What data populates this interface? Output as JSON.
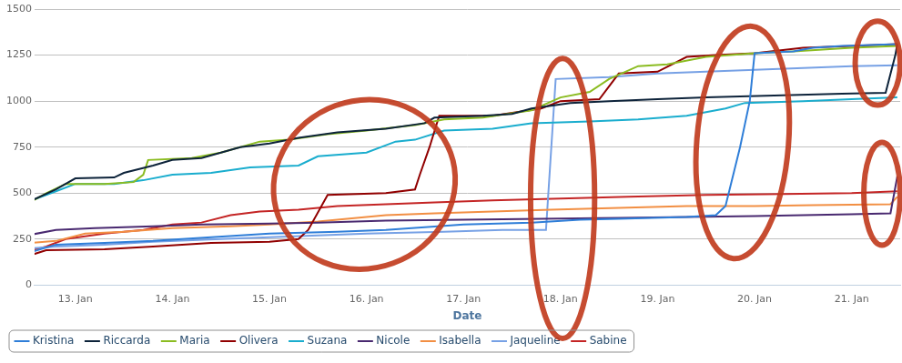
{
  "chart_data": {
    "type": "line",
    "x_label": "Date",
    "xlim": [
      12.58,
      21.5
    ],
    "xticks": [
      {
        "value": 13,
        "label": "13. Jan"
      },
      {
        "value": 14,
        "label": "14. Jan"
      },
      {
        "value": 15,
        "label": "15. Jan"
      },
      {
        "value": 16,
        "label": "16. Jan"
      },
      {
        "value": 17,
        "label": "17. Jan"
      },
      {
        "value": 18,
        "label": "18. Jan"
      },
      {
        "value": 19,
        "label": "19. Jan"
      },
      {
        "value": 20,
        "label": "20. Jan"
      },
      {
        "value": 21,
        "label": "21. Jan"
      }
    ],
    "ylim": [
      0,
      1500
    ],
    "yticks": [
      0,
      250,
      500,
      750,
      1000,
      1250,
      1500
    ],
    "grid": true,
    "legend": "bottom",
    "series": [
      {
        "name": "Kristina",
        "color": "#2f7ed8",
        "x": [
          12.55,
          12.8,
          13.3,
          13.8,
          14.4,
          15.0,
          15.7,
          16.2,
          17.0,
          17.7,
          18.2,
          18.6,
          19.3,
          19.6,
          19.7,
          19.85,
          19.95,
          20.0,
          20.4,
          20.6,
          20.9,
          21.47
        ],
        "values": [
          180,
          220,
          230,
          240,
          260,
          280,
          290,
          300,
          330,
          340,
          355,
          360,
          370,
          380,
          430,
          750,
          1000,
          1260,
          1270,
          1290,
          1300,
          1310
        ]
      },
      {
        "name": "Riccarda",
        "color": "#0d233a",
        "x": [
          12.55,
          12.8,
          13.0,
          13.4,
          13.5,
          13.8,
          14.0,
          14.3,
          14.7,
          15.0,
          15.3,
          15.7,
          16.2,
          16.6,
          16.7,
          17.2,
          17.5,
          17.7,
          18.1,
          18.5,
          19.0,
          19.5,
          20.2,
          20.9,
          21.35,
          21.45,
          21.47
        ],
        "values": [
          460,
          520,
          580,
          585,
          610,
          650,
          680,
          690,
          750,
          770,
          800,
          830,
          850,
          880,
          910,
          920,
          930,
          960,
          990,
          1000,
          1010,
          1020,
          1030,
          1040,
          1045,
          1250,
          1310
        ]
      },
      {
        "name": "Maria",
        "color": "#8bbc21",
        "x": [
          12.55,
          12.7,
          12.9,
          13.3,
          13.6,
          13.7,
          13.75,
          14.2,
          14.5,
          14.9,
          15.2,
          15.6,
          16.0,
          16.5,
          16.8,
          17.2,
          17.7,
          18.0,
          18.3,
          18.5,
          18.8,
          19.1,
          19.5,
          20.0,
          20.4,
          21.0,
          21.47
        ],
        "values": [
          455,
          500,
          550,
          550,
          560,
          600,
          680,
          690,
          720,
          780,
          790,
          820,
          840,
          870,
          900,
          910,
          950,
          1020,
          1050,
          1120,
          1190,
          1200,
          1240,
          1260,
          1270,
          1290,
          1300
        ]
      },
      {
        "name": "Olivera",
        "color": "#910000",
        "x": [
          12.55,
          12.7,
          13.3,
          13.8,
          14.4,
          15.0,
          15.3,
          15.4,
          15.6,
          16.2,
          16.5,
          16.55,
          16.65,
          16.75,
          17.3,
          17.8,
          18.0,
          18.4,
          18.6,
          19.0,
          19.3,
          19.6,
          20.0,
          20.5,
          21.0,
          21.47
        ],
        "values": [
          165,
          190,
          195,
          210,
          230,
          235,
          250,
          300,
          490,
          500,
          520,
          600,
          750,
          920,
          920,
          960,
          1000,
          1010,
          1150,
          1160,
          1240,
          1250,
          1260,
          1290,
          1300,
          1310
        ]
      },
      {
        "name": "Suzana",
        "color": "#1aadce",
        "x": [
          12.55,
          12.8,
          13.0,
          13.4,
          13.7,
          14.0,
          14.4,
          14.8,
          15.3,
          15.5,
          16.0,
          16.3,
          16.5,
          16.8,
          17.3,
          17.7,
          18.3,
          18.8,
          19.3,
          19.7,
          19.9,
          20.5,
          21.0,
          21.47
        ],
        "values": [
          460,
          510,
          550,
          550,
          570,
          600,
          610,
          640,
          650,
          700,
          720,
          780,
          790,
          840,
          850,
          880,
          890,
          900,
          920,
          960,
          990,
          1000,
          1010,
          1020
        ]
      },
      {
        "name": "Nicole",
        "color": "#492970",
        "x": [
          12.55,
          12.8,
          13.2,
          13.8,
          14.3,
          15.0,
          15.5,
          16.2,
          17.0,
          17.8,
          18.6,
          19.3,
          20.0,
          20.5,
          21.0,
          21.4,
          21.47
        ],
        "values": [
          275,
          300,
          310,
          320,
          330,
          335,
          340,
          350,
          355,
          360,
          365,
          370,
          375,
          380,
          385,
          390,
          590
        ]
      },
      {
        "name": "Isabella",
        "color": "#f28f43",
        "x": [
          12.55,
          12.8,
          13.1,
          13.5,
          14.0,
          14.6,
          15.0,
          15.5,
          15.8,
          16.2,
          16.7,
          17.3,
          17.9,
          18.6,
          19.3,
          20.0,
          20.6,
          21.4,
          21.47
        ],
        "values": [
          230,
          240,
          280,
          290,
          310,
          320,
          330,
          345,
          360,
          380,
          390,
          400,
          410,
          420,
          430,
          430,
          435,
          440,
          480
        ]
      },
      {
        "name": "Jaqueline",
        "color": "#77a1e5",
        "x": [
          12.55,
          12.8,
          13.3,
          13.8,
          14.5,
          15.0,
          15.5,
          16.0,
          16.8,
          17.4,
          17.85,
          17.95,
          18.5,
          19.0,
          19.5,
          20.0,
          20.5,
          21.0,
          21.47
        ],
        "values": [
          200,
          210,
          220,
          235,
          250,
          260,
          270,
          280,
          290,
          300,
          300,
          1120,
          1130,
          1150,
          1160,
          1170,
          1180,
          1190,
          1195
        ]
      },
      {
        "name": "Sabine",
        "color": "#c42525",
        "x": [
          12.55,
          12.7,
          12.9,
          13.3,
          13.7,
          14.0,
          14.3,
          14.6,
          14.9,
          15.3,
          15.7,
          16.2,
          16.7,
          17.3,
          18.0,
          18.7,
          19.5,
          20.3,
          21.0,
          21.47
        ],
        "values": [
          190,
          210,
          250,
          280,
          300,
          330,
          340,
          380,
          400,
          410,
          430,
          440,
          450,
          460,
          470,
          480,
          490,
          495,
          500,
          510
        ]
      }
    ]
  }
}
